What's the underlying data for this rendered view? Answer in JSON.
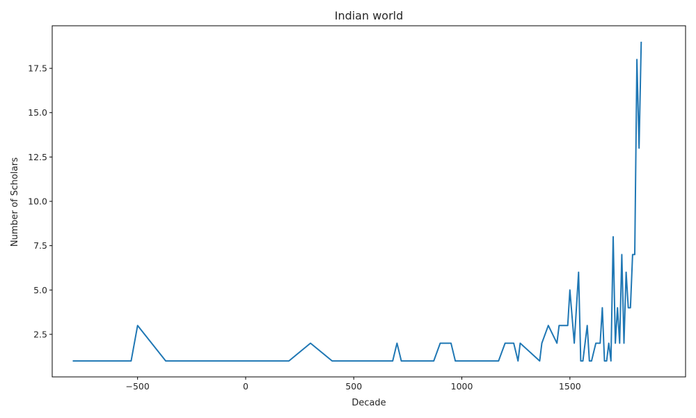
{
  "chart_data": {
    "type": "line",
    "title": "Indian world",
    "xlabel": "Decade",
    "ylabel": "Number of Scholars",
    "xlim": [
      -895,
      2035
    ],
    "ylim": [
      0.1,
      19.9
    ],
    "xticks": [
      -500,
      0,
      500,
      1000,
      1500
    ],
    "xtick_labels": [
      "−500",
      "0",
      "500",
      "1000",
      "1500"
    ],
    "yticks": [
      2.5,
      5.0,
      7.5,
      10.0,
      12.5,
      15.0,
      17.5
    ],
    "ytick_labels": [
      "2.5",
      "5.0",
      "7.5",
      "10.0",
      "12.5",
      "15.0",
      "17.5"
    ],
    "grid": false,
    "color": "#1f77b4",
    "series": [
      {
        "x": [
          -800,
          -530,
          -500,
          -370,
          200,
          300,
          400,
          680,
          700,
          720,
          870,
          900,
          950,
          970,
          1170,
          1200,
          1240,
          1260,
          1270,
          1360,
          1370,
          1400,
          1440,
          1450,
          1490,
          1500,
          1520,
          1540,
          1550,
          1560,
          1580,
          1590,
          1600,
          1620,
          1640,
          1650,
          1660,
          1670,
          1680,
          1690,
          1700,
          1710,
          1720,
          1730,
          1740,
          1750,
          1760,
          1770,
          1780,
          1790,
          1800,
          1810,
          1820,
          1830
        ],
        "y": [
          1,
          1,
          3,
          1,
          1,
          2,
          1,
          1,
          2,
          1,
          1,
          2,
          2,
          1,
          1,
          2,
          2,
          1,
          2,
          1,
          2,
          3,
          2,
          3,
          3,
          5,
          2,
          6,
          1,
          1,
          3,
          1,
          1,
          2,
          2,
          4,
          1,
          1,
          2,
          1,
          8,
          2,
          4,
          2,
          7,
          2,
          6,
          4,
          4,
          7,
          7,
          18,
          13,
          19
        ]
      }
    ]
  }
}
